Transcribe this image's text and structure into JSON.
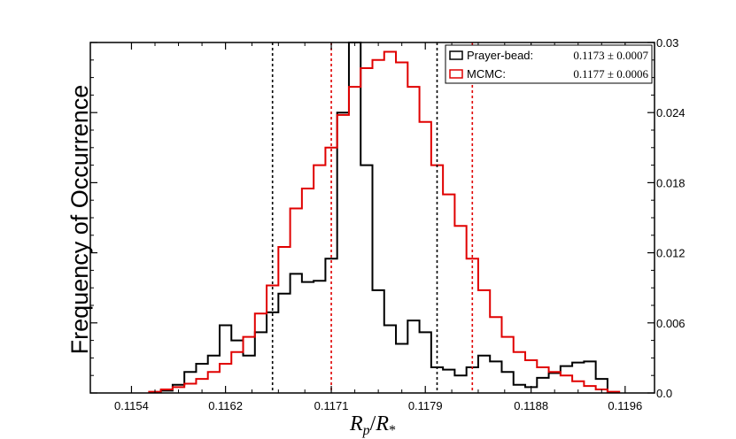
{
  "chart_data": {
    "type": "histogram",
    "ylabel": "Frequency of Occurrence",
    "xlabel": {
      "base": "R",
      "num_sub": "p",
      "slash": "/",
      "den_base": "R",
      "den_sub": "*"
    },
    "xlim": [
      0.11505,
      0.11985
    ],
    "ylim": [
      0,
      0.03
    ],
    "x_ticks": [
      0.1154,
      0.1162,
      0.1171,
      0.1179,
      0.1188,
      0.1196
    ],
    "x_tick_labels": [
      "0.1154",
      "0.1162",
      "0.1171",
      "0.1179",
      "0.1188",
      "0.1196"
    ],
    "y_ticks": [
      0,
      0.006,
      0.012,
      0.018,
      0.024,
      0.03
    ],
    "y_tick_labels": [
      "0.0",
      "0.006",
      "0.012",
      "0.018",
      "0.024",
      "0.03"
    ],
    "y_axis_side": "right",
    "legend_position": "top-right",
    "series": [
      {
        "name": "Prayer-bead:",
        "value_label": "0.1173 ± 0.0007",
        "color": "#000000",
        "x": [
          0.1157,
          0.1158,
          0.1159,
          0.116,
          0.1161,
          0.1162,
          0.1163,
          0.1164,
          0.1165,
          0.1166,
          0.1167,
          0.1168,
          0.1169,
          0.117,
          0.1171,
          0.1172,
          0.1173,
          0.1174,
          0.1175,
          0.1176,
          0.1177,
          0.1178,
          0.1179,
          0.118,
          0.1181,
          0.1182,
          0.1183,
          0.1184,
          0.1185,
          0.1186,
          0.1187,
          0.1188,
          0.1189,
          0.119,
          0.1191,
          0.1192,
          0.1193,
          0.1194
        ],
        "y": [
          0.0002,
          0.0007,
          0.0018,
          0.0025,
          0.0032,
          0.0058,
          0.0045,
          0.0032,
          0.0052,
          0.0069,
          0.0085,
          0.0102,
          0.0095,
          0.0096,
          0.0115,
          0.024,
          0.03,
          0.0195,
          0.0088,
          0.0058,
          0.0042,
          0.0062,
          0.0052,
          0.0022,
          0.002,
          0.0015,
          0.0022,
          0.0032,
          0.0027,
          0.0018,
          0.0007,
          0.0005,
          0.0013,
          0.0017,
          0.0023,
          0.0026,
          0.0027,
          0.0012
        ]
      },
      {
        "name": "MCMC:",
        "value_label": "0.1177 ± 0.0006",
        "color": "#e00000",
        "x": [
          0.1156,
          0.1157,
          0.1158,
          0.1159,
          0.116,
          0.1161,
          0.1162,
          0.1163,
          0.1164,
          0.1165,
          0.1166,
          0.1167,
          0.1168,
          0.1169,
          0.117,
          0.1171,
          0.1172,
          0.1173,
          0.1174,
          0.1175,
          0.1176,
          0.1177,
          0.1178,
          0.1179,
          0.118,
          0.1181,
          0.1182,
          0.1183,
          0.1184,
          0.1185,
          0.1186,
          0.1187,
          0.1188,
          0.1189,
          0.119,
          0.1191,
          0.1192,
          0.1193,
          0.1194,
          0.1195
        ],
        "y": [
          0.0001,
          0.0003,
          0.0005,
          0.0008,
          0.0012,
          0.0018,
          0.0025,
          0.0035,
          0.0048,
          0.0068,
          0.0092,
          0.0125,
          0.0158,
          0.0175,
          0.0195,
          0.021,
          0.0238,
          0.0262,
          0.0278,
          0.0285,
          0.0292,
          0.0283,
          0.0262,
          0.0232,
          0.0195,
          0.017,
          0.0143,
          0.0115,
          0.0088,
          0.0065,
          0.0048,
          0.0035,
          0.0028,
          0.0022,
          0.0018,
          0.0015,
          0.001,
          0.0006,
          0.0003,
          0.0001
        ]
      }
    ],
    "vlines": [
      {
        "x": 0.1166,
        "color": "#000000",
        "style": "dotted"
      },
      {
        "x": 0.118,
        "color": "#000000",
        "style": "dotted"
      },
      {
        "x": 0.1171,
        "color": "#e00000",
        "style": "dotted"
      },
      {
        "x": 0.1183,
        "color": "#e00000",
        "style": "dotted"
      }
    ]
  }
}
